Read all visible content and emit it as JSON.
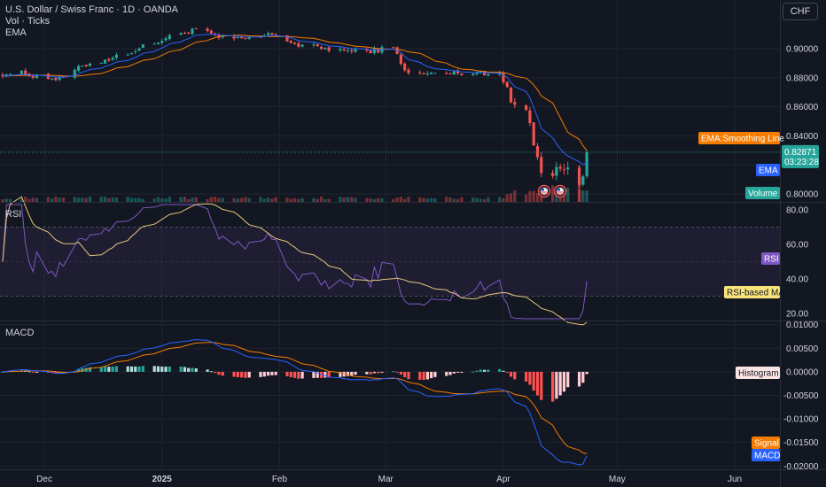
{
  "header": {
    "symbol_title": "U.S. Dollar / Swiss Franc · 1D · OANDA",
    "volume_label": "Vol · Ticks",
    "ema_label": "EMA",
    "currency_button": "CHF"
  },
  "colors": {
    "background": "#131722",
    "up": "#26a69a",
    "down": "#ef5350",
    "ema": "#2962ff",
    "smoothing": "#f57c00",
    "rsi": "#7e57c2",
    "rsi_ma": "#e8c87a",
    "macd": "#2962ff",
    "signal": "#f57c00",
    "grid": "#1f2430"
  },
  "chart_data": [
    {
      "type": "candlestick",
      "pane": "price",
      "title": "U.S. Dollar / Swiss Franc · 1D · OANDA",
      "y_ticks": [
        "0.90000",
        "0.88000",
        "0.86000",
        "0.84000",
        "0.82000",
        "0.80000"
      ],
      "ylim": [
        0.7945,
        0.9335
      ],
      "x_ticks": [
        "Dec",
        "2025",
        "Feb",
        "Mar",
        "Apr",
        "May",
        "Jun"
      ],
      "last_price": "0.82871",
      "countdown": "03:23:28",
      "series": [
        {
          "name": "EMA",
          "type": "line"
        },
        {
          "name": "EMA:Smoothing Line",
          "type": "line"
        },
        {
          "name": "Volume",
          "type": "bar"
        }
      ],
      "anchors": [
        {
          "date": "2024-11-25",
          "close": 0.883
        },
        {
          "date": "2024-12-05",
          "close": 0.879
        },
        {
          "date": "2024-12-12",
          "close": 0.889
        },
        {
          "date": "2024-12-20",
          "close": 0.8945
        },
        {
          "date": "2025-01-01",
          "close": 0.906
        },
        {
          "date": "2025-01-10",
          "close": 0.914
        },
        {
          "date": "2025-01-15",
          "close": 0.908
        },
        {
          "date": "2025-01-21",
          "close": 0.906
        },
        {
          "date": "2025-01-31",
          "close": 0.91
        },
        {
          "date": "2025-02-06",
          "close": 0.902
        },
        {
          "date": "2025-02-14",
          "close": 0.9
        },
        {
          "date": "2025-02-21",
          "close": 0.898
        },
        {
          "date": "2025-03-03",
          "close": 0.9
        },
        {
          "date": "2025-03-07",
          "close": 0.882
        },
        {
          "date": "2025-03-14",
          "close": 0.883
        },
        {
          "date": "2025-03-21",
          "close": 0.883
        },
        {
          "date": "2025-03-31",
          "close": 0.884
        },
        {
          "date": "2025-04-03",
          "close": 0.863
        },
        {
          "date": "2025-04-07",
          "close": 0.859
        },
        {
          "date": "2025-04-11",
          "close": 0.815
        },
        {
          "date": "2025-04-14",
          "close": 0.816
        },
        {
          "date": "2025-04-17",
          "close": 0.819
        },
        {
          "date": "2025-04-21",
          "close": 0.806
        },
        {
          "date": "2025-04-22",
          "close": 0.815
        },
        {
          "date": "2025-04-23",
          "close": 0.8287
        }
      ]
    },
    {
      "type": "line",
      "pane": "rsi",
      "title": "RSI",
      "y_ticks": [
        "80.00",
        "60.00",
        "40.00",
        "20.00"
      ],
      "ylim": [
        16,
        84
      ],
      "band": [
        30,
        70
      ],
      "series": [
        {
          "name": "RSI"
        },
        {
          "name": "RSI-based MA"
        }
      ]
    },
    {
      "type": "line",
      "pane": "macd",
      "title": "MACD",
      "y_ticks": [
        "0.01000",
        "0.00500",
        "0.00000",
        "-0.00500",
        "-0.01000",
        "-0.01500",
        "-0.02000"
      ],
      "ylim": [
        -0.0207,
        0.0107
      ],
      "series": [
        {
          "name": "Histogram",
          "type": "bar"
        },
        {
          "name": "Signal"
        },
        {
          "name": "MACD"
        }
      ]
    }
  ]
}
